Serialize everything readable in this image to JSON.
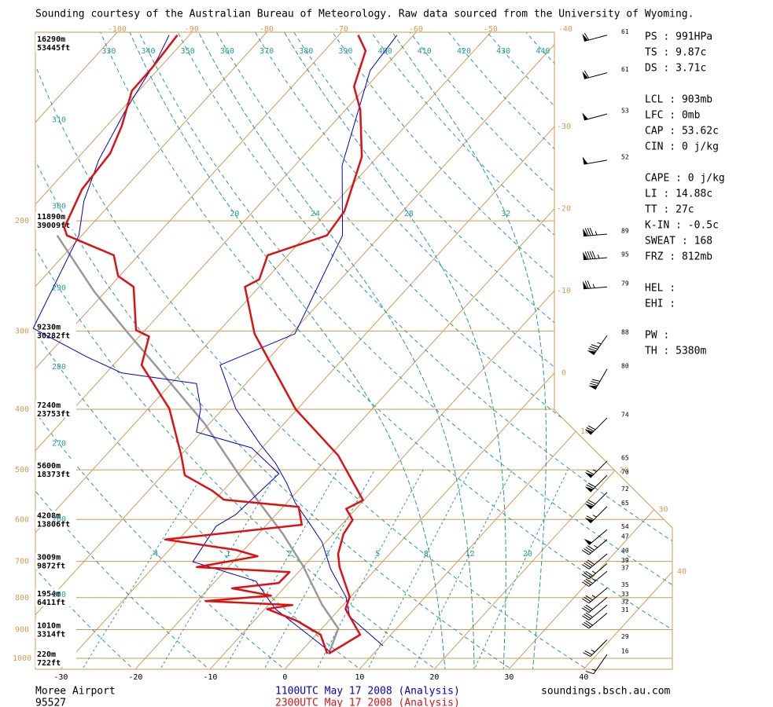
{
  "header": "Sounding courtesy of the Australian Bureau of Meteorology.  Raw data sourced from the University of Wyoming.",
  "chart_data": {
    "type": "skewt",
    "log_y": true,
    "ylim": [
      1040,
      100
    ],
    "yticks": [
      200,
      300,
      400,
      500,
      600,
      700,
      800,
      900,
      1000
    ],
    "levels": [
      {
        "pressure": 100,
        "height_m": "16290m",
        "height_ft": "53445ft"
      },
      {
        "pressure": 200,
        "height_m": "11890m",
        "height_ft": "39009ft"
      },
      {
        "pressure": 300,
        "height_m": "9230m",
        "height_ft": "30282ft"
      },
      {
        "pressure": 400,
        "height_m": "7240m",
        "height_ft": "23753ft"
      },
      {
        "pressure": 500,
        "height_m": "5600m",
        "height_ft": "18373ft"
      },
      {
        "pressure": 600,
        "height_m": "4208m",
        "height_ft": "13806ft"
      },
      {
        "pressure": 700,
        "height_m": "3009m",
        "height_ft": "9872ft"
      },
      {
        "pressure": 800,
        "height_m": "1954m",
        "height_ft": "6411ft"
      },
      {
        "pressure": 900,
        "height_m": "1010m",
        "height_ft": "3314ft"
      },
      {
        "pressure": 1000,
        "height_m": "220m",
        "height_ft": "722ft"
      }
    ],
    "xticks": [
      -30,
      -20,
      -10,
      0,
      10,
      20,
      30,
      40
    ],
    "top_xticks": [
      -100,
      -90,
      -80,
      -70,
      -60,
      -50,
      -40
    ],
    "right_xticks": [
      -30,
      -20,
      -10,
      0,
      10,
      20,
      30,
      40
    ],
    "dry_adiabats": [
      250,
      260,
      270,
      280,
      290,
      300,
      310,
      330,
      340,
      350,
      360,
      370,
      380,
      390,
      400,
      410,
      420,
      430,
      440
    ],
    "moist_adiabats": [
      20,
      24,
      28,
      32
    ],
    "mixing_ratios": [
      {
        "value": 0.4,
        "label": ".4"
      },
      1,
      2,
      3,
      5,
      8,
      12,
      20
    ],
    "soundings": [
      {
        "name": "1100UTC May 17 2008 (Analysis)",
        "color": "#0000cc",
        "temperature": {
          "p": [
            955,
            858,
            798,
            721,
            652,
            606,
            564,
            525,
            488,
            454,
            399,
            355,
            340,
            303,
            211,
            163,
            115,
            101
          ],
          "t": [
            10.3,
            2.3,
            -0.6,
            -6.0,
            -10.5,
            -14.7,
            -18.9,
            -22.4,
            -26.3,
            -30.8,
            -38.3,
            -43.7,
            -45.7,
            -39.5,
            -45.1,
            -53.7,
            -61.5,
            -62.2
          ]
        },
        "dewpoint": {
          "p": [
            977,
            834,
            753,
            701,
            615,
            589,
            507,
            461,
            435,
            399,
            364,
            350,
            330,
            297,
            211,
            186,
            160,
            133,
            110,
            101
          ],
          "t": [
            4.0,
            -8.6,
            -14.6,
            -25.4,
            -26.6,
            -25.4,
            -24.6,
            -31.4,
            -40.7,
            -43.0,
            -46.6,
            -57.9,
            -64.5,
            -75.2,
            -80.4,
            -83.9,
            -86.9,
            -89.4,
            -91.4,
            -92.7
          ]
        }
      },
      {
        "name": "2300UTC May 17 2008 (Analysis)",
        "color": "#dd1111",
        "temperature": {
          "p": [
            983,
            917,
            834,
            798,
            715,
            681,
            633,
            601,
            577,
            559,
            474,
            400,
            303,
            255,
            248,
            227,
            211,
            193,
            158,
            133,
            122,
            107,
            101
          ],
          "t": [
            4.0,
            5.9,
            0.8,
            -0.1,
            -5.1,
            -6.9,
            -8.6,
            -9.1,
            -11.3,
            -10.1,
            -18.9,
            -30.2,
            -44.9,
            -51.9,
            -50.9,
            -52.7,
            -47.2,
            -47.8,
            -52.1,
            -58.0,
            -61.7,
            -64.5,
            -67.4
          ]
        },
        "dewpoint": {
          "p": [
            983,
            917,
            871,
            834,
            822,
            810,
            794,
            773,
            758,
            728,
            715,
            687,
            671,
            646,
            612,
            573,
            558,
            540,
            510,
            474,
            399,
            340,
            306,
            299,
            255,
            245,
            227,
            211,
            205,
            178,
            156,
            141,
            124,
            114,
            101
          ],
          "t": [
            3.8,
            0.6,
            -4.3,
            -9.7,
            -6.8,
            -18.9,
            -10.8,
            -16.9,
            -11.3,
            -11.2,
            -24.2,
            -17.4,
            -21.1,
            -31.8,
            -15.3,
            -17.9,
            -28.8,
            -31.4,
            -37.0,
            -39.9,
            -47.2,
            -56.2,
            -58.7,
            -61.2,
            -66.8,
            -70.2,
            -73.3,
            -82.0,
            -83.3,
            -85.6,
            -86.2,
            -88.0,
            -90.9,
            -91.0,
            -91.6
          ]
        }
      }
    ],
    "parcel": {
      "color": "#999999",
      "p": [
        983,
        896,
        822,
        711,
        633,
        564,
        502,
        422,
        355,
        299,
        259,
        211
      ],
      "t": [
        4.0,
        2.2,
        -2.8,
        -10.2,
        -16.7,
        -23.7,
        -30.6,
        -40.6,
        -51.6,
        -62.6,
        -71.6,
        -83.3
      ]
    },
    "winds": {
      "pressure": [
        101,
        116,
        135,
        160,
        210,
        229,
        255,
        305,
        345,
        413,
        484,
        510,
        543,
        572,
        623,
        646,
        681,
        706,
        726,
        772,
        799,
        822,
        847,
        934,
        986
      ],
      "speed": [
        61,
        61,
        53,
        52,
        89,
        95,
        79,
        88,
        80,
        74,
        65,
        70,
        72,
        65,
        54,
        47,
        40,
        39,
        37,
        35,
        33,
        32,
        31,
        29,
        16
      ],
      "direction": [
        255,
        255,
        255,
        260,
        265,
        265,
        265,
        215,
        210,
        225,
        225,
        225,
        225,
        225,
        230,
        230,
        230,
        230,
        230,
        230,
        230,
        230,
        230,
        225,
        215
      ]
    },
    "indices": [
      [
        "PS : 991HPa",
        "TS : 9.87c",
        "DS : 3.71c"
      ],
      [
        "LCL : 903mb",
        "LFC : 0mb",
        "CAP : 53.62c",
        "CIN : 0 j/kg"
      ],
      [
        "CAPE : 0 j/kg",
        "LI : 14.88c",
        "TT : 27c",
        "K-IN : -0.5c",
        "SWEAT : 168",
        "FRZ : 812mb"
      ],
      [
        "HEL :",
        "EHI :"
      ],
      [
        "PW :",
        "TH : 5380m"
      ]
    ]
  },
  "station": "Moree Airport",
  "station_id": "95527",
  "source": "soundings.bsch.au.com"
}
